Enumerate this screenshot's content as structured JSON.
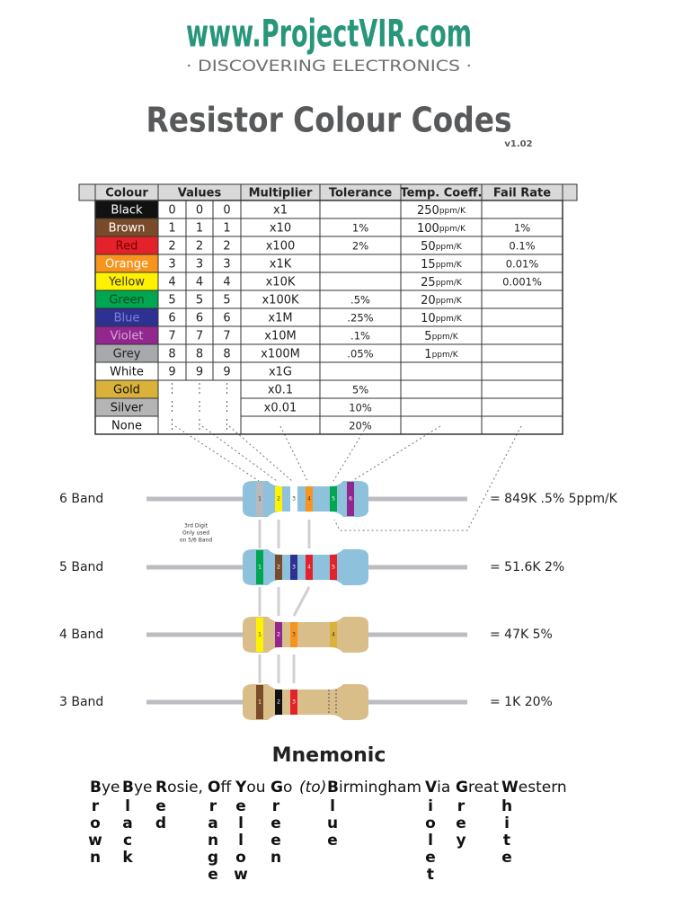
{
  "header": {
    "site": "www.ProjectVIR.com",
    "tagline": "· DISCOVERING ELECTRONICS ·",
    "title": "Resistor Colour Codes",
    "version": "v1.02"
  },
  "table": {
    "headers": [
      "Colour",
      "Values",
      "Multiplier",
      "Tolerance",
      "Temp. Coeff.",
      "Fail Rate"
    ],
    "rows": [
      {
        "colour": "Black",
        "fill": "#111111",
        "ink": "#ffffff",
        "values": [
          "0",
          "0",
          "0"
        ],
        "multiplier": "x1",
        "temp": {
          "value": "250",
          "unit": "ppm/K"
        }
      },
      {
        "colour": "Brown",
        "fill": "#7a4b2a",
        "ink": "#ffffff",
        "values": [
          "1",
          "1",
          "1"
        ],
        "multiplier": "x10",
        "tolerance": "1%",
        "temp": {
          "value": "100",
          "unit": "ppm/K"
        },
        "fail": "1%"
      },
      {
        "colour": "Red",
        "fill": "#e4222b",
        "ink": "#7a0000",
        "values": [
          "2",
          "2",
          "2"
        ],
        "multiplier": "x100",
        "tolerance": "2%",
        "temp": {
          "value": "50",
          "unit": "ppm/K"
        },
        "fail": "0.1%"
      },
      {
        "colour": "Orange",
        "fill": "#f7941d",
        "ink": "#ffffff",
        "values": [
          "3",
          "3",
          "3"
        ],
        "multiplier": "x1K",
        "temp": {
          "value": "15",
          "unit": "ppm/K"
        },
        "fail": "0.01%"
      },
      {
        "colour": "Yellow",
        "fill": "#fff200",
        "ink": "#333333",
        "values": [
          "4",
          "4",
          "4"
        ],
        "multiplier": "x10K",
        "temp": {
          "value": "25",
          "unit": "ppm/K"
        },
        "fail": "0.001%"
      },
      {
        "colour": "Green",
        "fill": "#00a651",
        "ink": "#0a4a24",
        "values": [
          "5",
          "5",
          "5"
        ],
        "multiplier": "x100K",
        "tolerance": ".5%",
        "temp": {
          "value": "20",
          "unit": "ppm/K"
        }
      },
      {
        "colour": "Blue",
        "fill": "#2e3192",
        "ink": "#7d80d8",
        "values": [
          "6",
          "6",
          "6"
        ],
        "multiplier": "x1M",
        "tolerance": ".25%",
        "temp": {
          "value": "10",
          "unit": "ppm/K"
        }
      },
      {
        "colour": "Violet",
        "fill": "#92278f",
        "ink": "#d9a6d8",
        "values": [
          "7",
          "7",
          "7"
        ],
        "multiplier": "x10M",
        "tolerance": ".1%",
        "temp": {
          "value": "5",
          "unit": "ppm/K"
        }
      },
      {
        "colour": "Grey",
        "fill": "#a7a9ac",
        "ink": "#222222",
        "values": [
          "8",
          "8",
          "8"
        ],
        "multiplier": "x100M",
        "tolerance": ".05%",
        "temp": {
          "value": "1",
          "unit": "ppm/K"
        }
      },
      {
        "colour": "White",
        "fill": "#ffffff",
        "ink": "#111111",
        "values": [
          "9",
          "9",
          "9"
        ],
        "multiplier": "x1G"
      },
      {
        "colour": "Gold",
        "fill": "#d9b13b",
        "ink": "#111111",
        "multiplier": "x0.1",
        "tolerance": "5%"
      },
      {
        "colour": "Silver",
        "fill": "#b5b5b5",
        "ink": "#111111",
        "multiplier": "x0.01",
        "tolerance": "10%"
      },
      {
        "colour": "None",
        "fill": "#ffffff",
        "ink": "#111111",
        "tolerance": "20%"
      }
    ]
  },
  "resistors": [
    {
      "label": "6 Band",
      "result": "= 849K .5% 5ppm/K",
      "body": "#8ec2dc",
      "bands": [
        {
          "color": "#b8b9bb",
          "label": "1"
        },
        {
          "color": "#fff200",
          "label": "2"
        },
        {
          "color": "#ffffff",
          "label": "3"
        },
        {
          "color": "#f7941d",
          "label": "4"
        },
        {
          "color": "#00a651",
          "label": "5"
        },
        {
          "color": "#92278f",
          "label": "6"
        }
      ]
    },
    {
      "label": "5 Band",
      "result": "= 51.6K 2%",
      "body": "#8ec2dc",
      "bands": [
        {
          "color": "#00a651",
          "label": "1"
        },
        {
          "color": "#7a4b2a",
          "label": "2"
        },
        {
          "color": "#2e3192",
          "label": "3"
        },
        {
          "color": "#e4222b",
          "label": "4"
        },
        {
          "color": "#e4222b",
          "label": "5"
        }
      ]
    },
    {
      "label": "4 Band",
      "result": "= 47K 5%",
      "body": "#d9be8a",
      "bands": [
        {
          "color": "#fff200",
          "label": "1"
        },
        {
          "color": "#92278f",
          "label": "2"
        },
        {
          "color": "#f7941d",
          "label": "3"
        },
        {
          "color": "#d9b13b",
          "label": "4"
        }
      ]
    },
    {
      "label": "3 Band",
      "result": "= 1K 20%",
      "body": "#d9be8a",
      "bands": [
        {
          "color": "#7a4b2a",
          "label": "1"
        },
        {
          "color": "#111111",
          "label": "2"
        },
        {
          "color": "#e4222b",
          "label": "3"
        }
      ]
    }
  ],
  "note": [
    "3rd Digit",
    "Only used",
    "on 5/6 Band"
  ],
  "mnemonic": {
    "title": "Mnemonic",
    "words": [
      {
        "initial": "B",
        "rest": "ye",
        "down": [
          "r",
          "o",
          "w",
          "n"
        ]
      },
      {
        "initial": "B",
        "rest": "ye",
        "down": [
          "l",
          "a",
          "c",
          "k"
        ]
      },
      {
        "initial": "R",
        "rest": "osie,",
        "down": [
          "e",
          "d"
        ]
      },
      {
        "initial": "O",
        "rest": "ff",
        "down": [
          "r",
          "a",
          "n",
          "g",
          "e"
        ]
      },
      {
        "initial": "Y",
        "rest": "ou",
        "down": [
          "e",
          "l",
          "l",
          "o",
          "w"
        ]
      },
      {
        "initial": "G",
        "rest": "o",
        "down": [
          "r",
          "e",
          "e",
          "n"
        ]
      },
      {
        "rest": "(to)"
      },
      {
        "initial": "B",
        "rest": "irmingham",
        "down": [
          "l",
          "u",
          "e"
        ]
      },
      {
        "initial": "V",
        "rest": "ia",
        "down": [
          "i",
          "o",
          "l",
          "e",
          "t"
        ]
      },
      {
        "initial": "G",
        "rest": "reat",
        "down": [
          "r",
          "e",
          "y"
        ]
      },
      {
        "initial": "W",
        "rest": "estern",
        "down": [
          "h",
          "i",
          "t",
          "e"
        ]
      }
    ]
  }
}
